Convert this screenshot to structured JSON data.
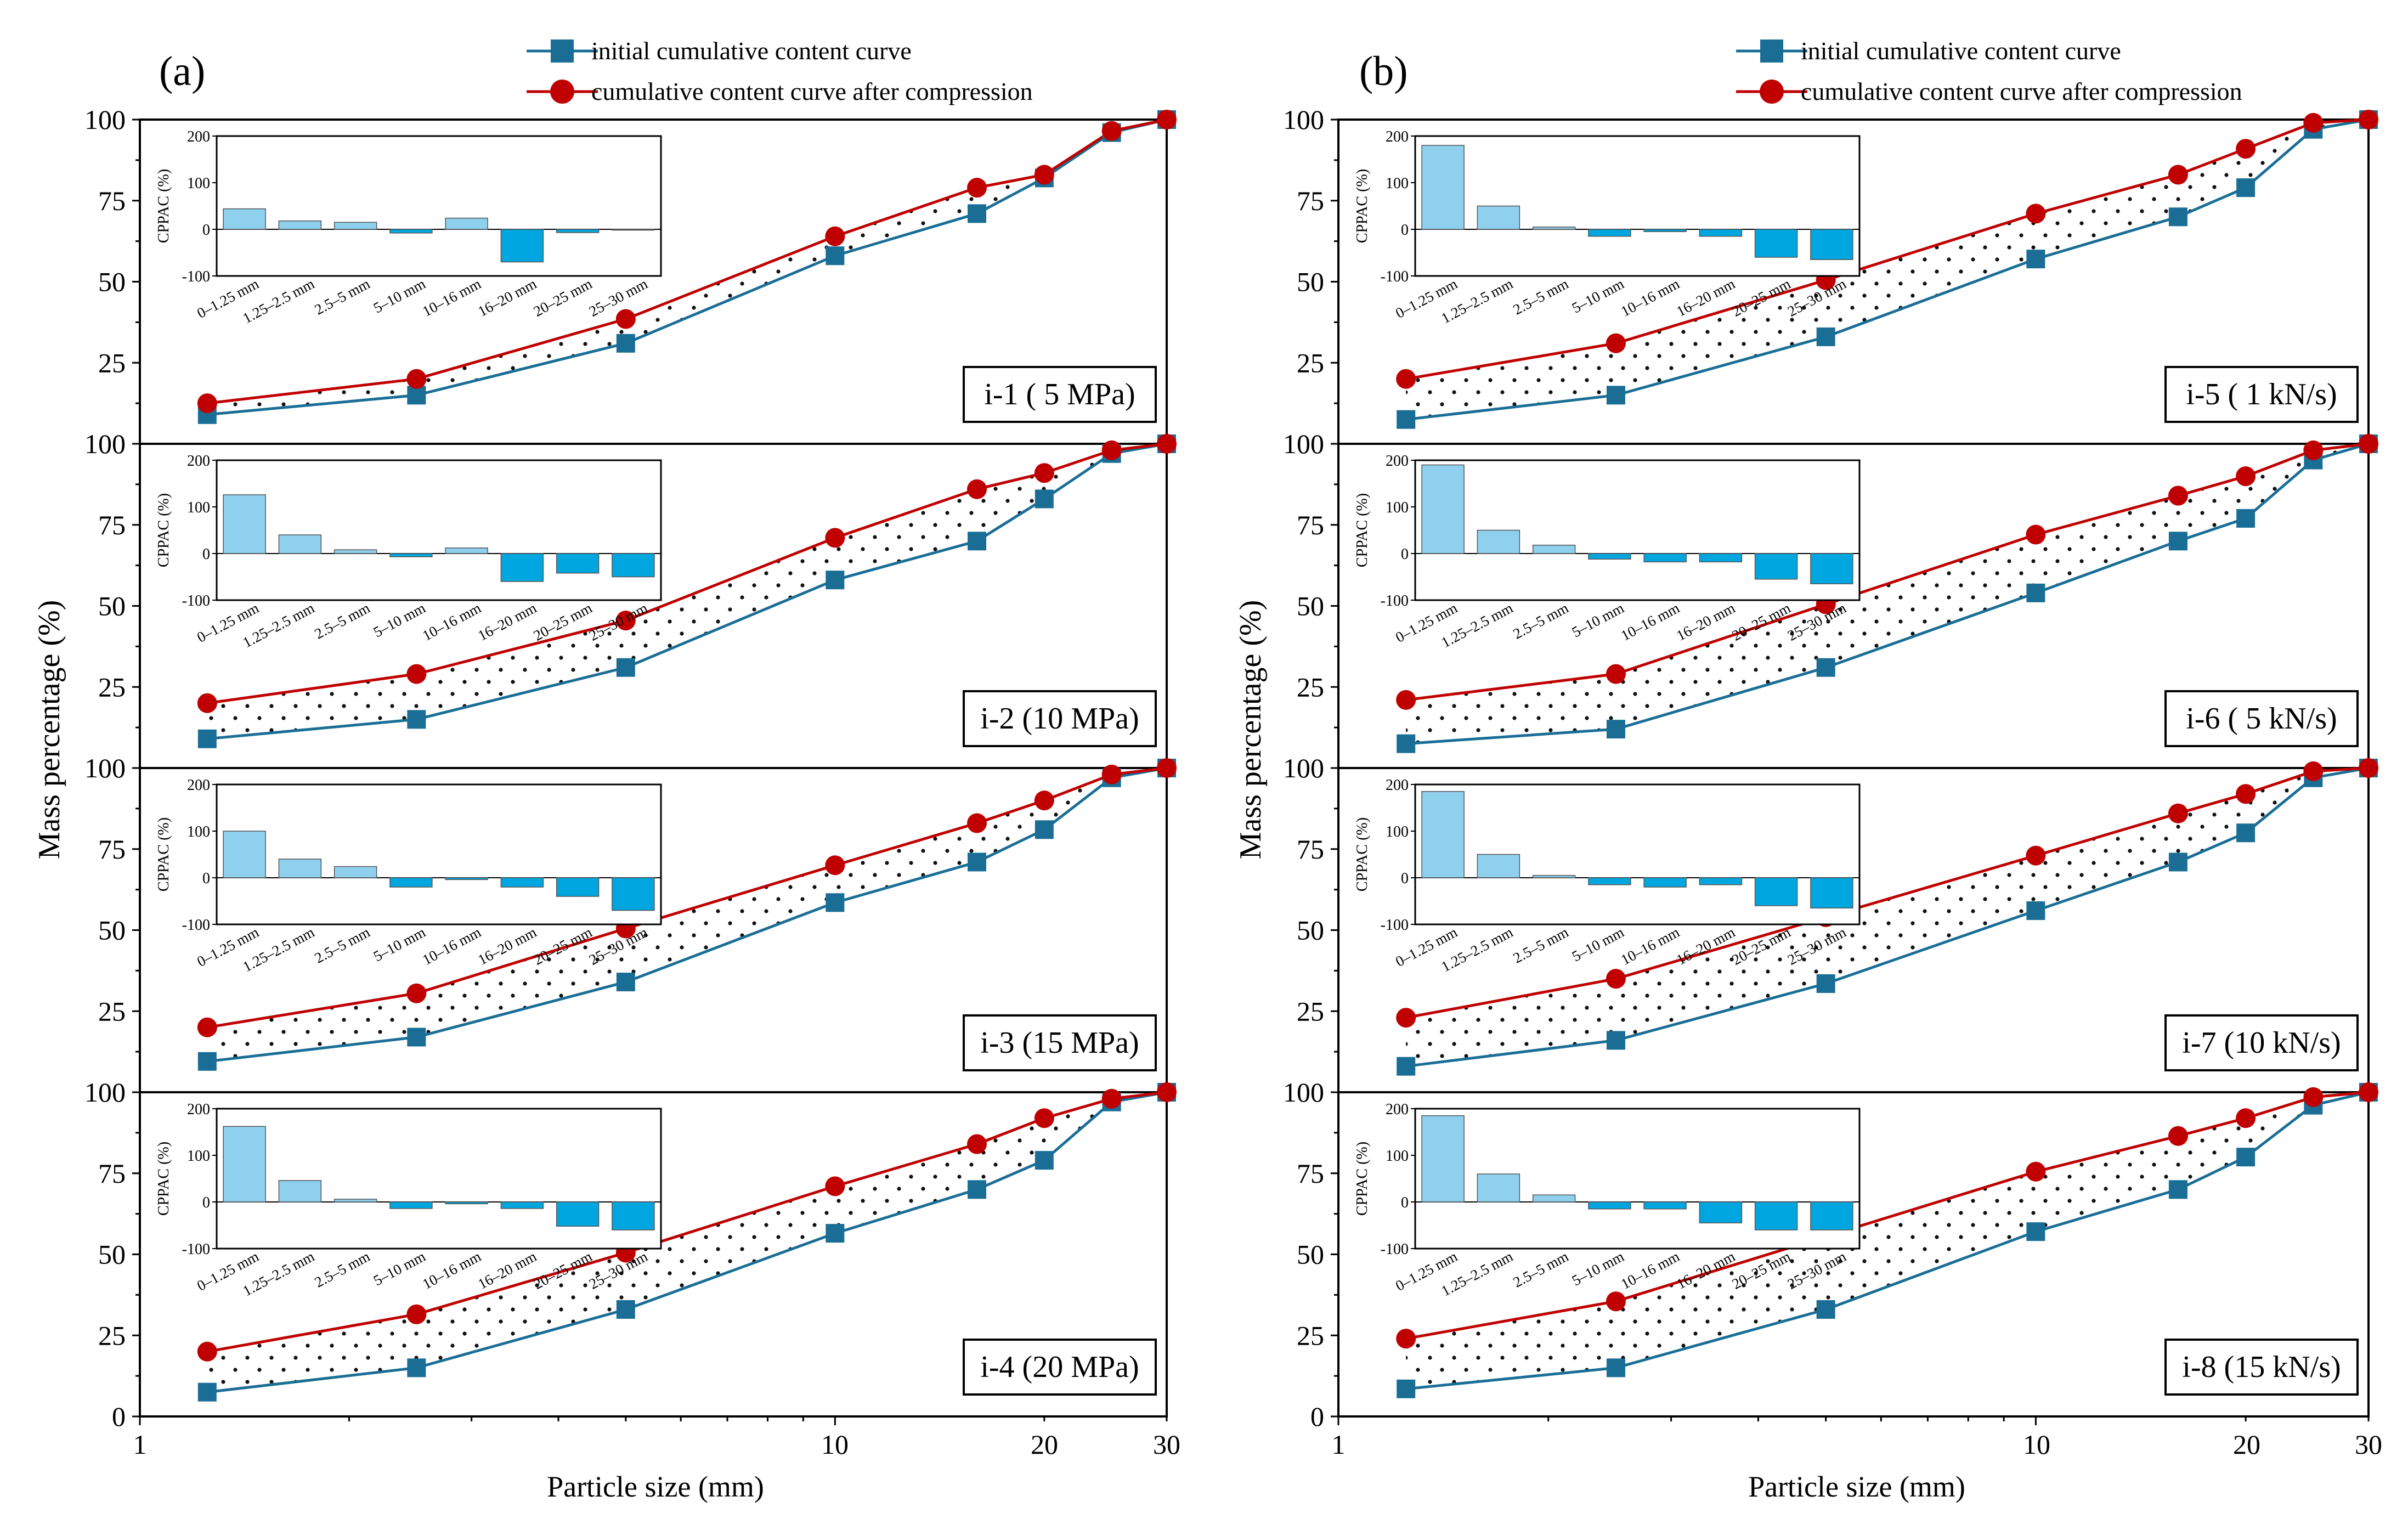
{
  "legend": {
    "initial": "initial cumulative content curve",
    "after": "cumulative content curve after compression"
  },
  "colors": {
    "initial": "#1a6e96",
    "after": "#c00000",
    "inset_pos": "#8fd0ef",
    "inset_neg": "#00a6e0"
  },
  "axes": {
    "xlabel": "Particle size (mm)",
    "ylabel": "Mass percentage (%)",
    "x_ticks": [
      "1",
      "10",
      "20",
      "30"
    ],
    "y_ticks": [
      "0",
      "25",
      "50",
      "75",
      "100"
    ]
  },
  "inset_axes": {
    "ylabel": "CPPAC (%)",
    "y_ticks": [
      "-100",
      "0",
      "100",
      "200"
    ]
  },
  "chart_data": {
    "type": "line",
    "x_scale": "log",
    "xlim": [
      1,
      30
    ],
    "ylim": [
      0,
      100
    ],
    "x": [
      1.25,
      2.5,
      5,
      10,
      16,
      20,
      25,
      30
    ],
    "inset": {
      "type": "bar",
      "categories": [
        "0–1.25 mm",
        "1.25–2.5 mm",
        "2.5–5 mm",
        "5–10 mm",
        "10–16 mm",
        "16–20 mm",
        "20–25 mm",
        "25–30 mm"
      ],
      "ylim": [
        -100,
        200
      ]
    },
    "groups": [
      {
        "panel_label": "(a)",
        "panels": [
          {
            "label": "i-1 ( 5  MPa)",
            "initial": [
              9,
              15,
              31,
              58,
              71,
              82,
              96,
              100
            ],
            "after": [
              12.5,
              20,
              38.5,
              64,
              79,
              83,
              96.5,
              100
            ],
            "cppac": [
              44,
              18,
              15,
              -8,
              24,
              -70,
              -7,
              0
            ]
          },
          {
            "label": "i-2 (10 MPa)",
            "initial": [
              9,
              15,
              31,
              58,
              70,
              83,
              97,
              100
            ],
            "after": [
              20,
              29,
              45.5,
              71,
              86,
              91,
              98,
              100
            ],
            "cppac": [
              126,
              40,
              8,
              -7,
              12,
              -60,
              -42,
              -50
            ]
          },
          {
            "label": "i-3 (15 MPa)",
            "initial": [
              9.5,
              17,
              34,
              58.5,
              71,
              81,
              97,
              100
            ],
            "after": [
              20,
              30.5,
              50.5,
              70,
              83,
              90,
              98,
              100
            ],
            "cppac": [
              100,
              40,
              24,
              -20,
              -4,
              -20,
              -40,
              -70
            ]
          },
          {
            "label": "i-4 (20 MPa)",
            "initial": [
              7.5,
              15,
              33,
              56.5,
              70,
              79,
              97,
              100
            ],
            "after": [
              20,
              31.5,
              50.5,
              71,
              84,
              92,
              98,
              100
            ],
            "cppac": [
              162,
              46,
              6,
              -14,
              -4,
              -14,
              -52,
              -60
            ]
          }
        ]
      },
      {
        "panel_label": "(b)",
        "panels": [
          {
            "label": "i-5 ( 1  kN/s)",
            "initial": [
              7.5,
              15,
              33,
              57,
              70,
              79,
              97,
              100
            ],
            "after": [
              20,
              31,
              50.5,
              71,
              83,
              91,
              99,
              100
            ],
            "cppac": [
              180,
              50,
              5,
              -15,
              -5,
              -15,
              -60,
              -65
            ]
          },
          {
            "label": "i-6 ( 5  kN/s)",
            "initial": [
              7.5,
              12,
              31,
              54,
              70,
              77,
              95,
              100
            ],
            "after": [
              21,
              29,
              50.5,
              72,
              84,
              90,
              98,
              100
            ],
            "cppac": [
              190,
              50,
              18,
              -12,
              -18,
              -18,
              -55,
              -65
            ]
          },
          {
            "label": "i-7 (10 kN/s)",
            "initial": [
              8,
              16,
              33.5,
              56,
              71,
              80,
              97,
              100
            ],
            "after": [
              23,
              35,
              54,
              73,
              86,
              92,
              99,
              100
            ],
            "cppac": [
              185,
              50,
              5,
              -15,
              -20,
              -15,
              -60,
              -65
            ]
          },
          {
            "label": "i-8 (15 kN/s)",
            "initial": [
              8.5,
              15,
              33,
              57,
              70,
              80,
              96,
              100
            ],
            "after": [
              24,
              35.5,
              55.5,
              75.5,
              86.5,
              92,
              98.5,
              100
            ],
            "cppac": [
              185,
              60,
              15,
              -15,
              -15,
              -45,
              -60,
              -60
            ]
          }
        ]
      }
    ]
  }
}
